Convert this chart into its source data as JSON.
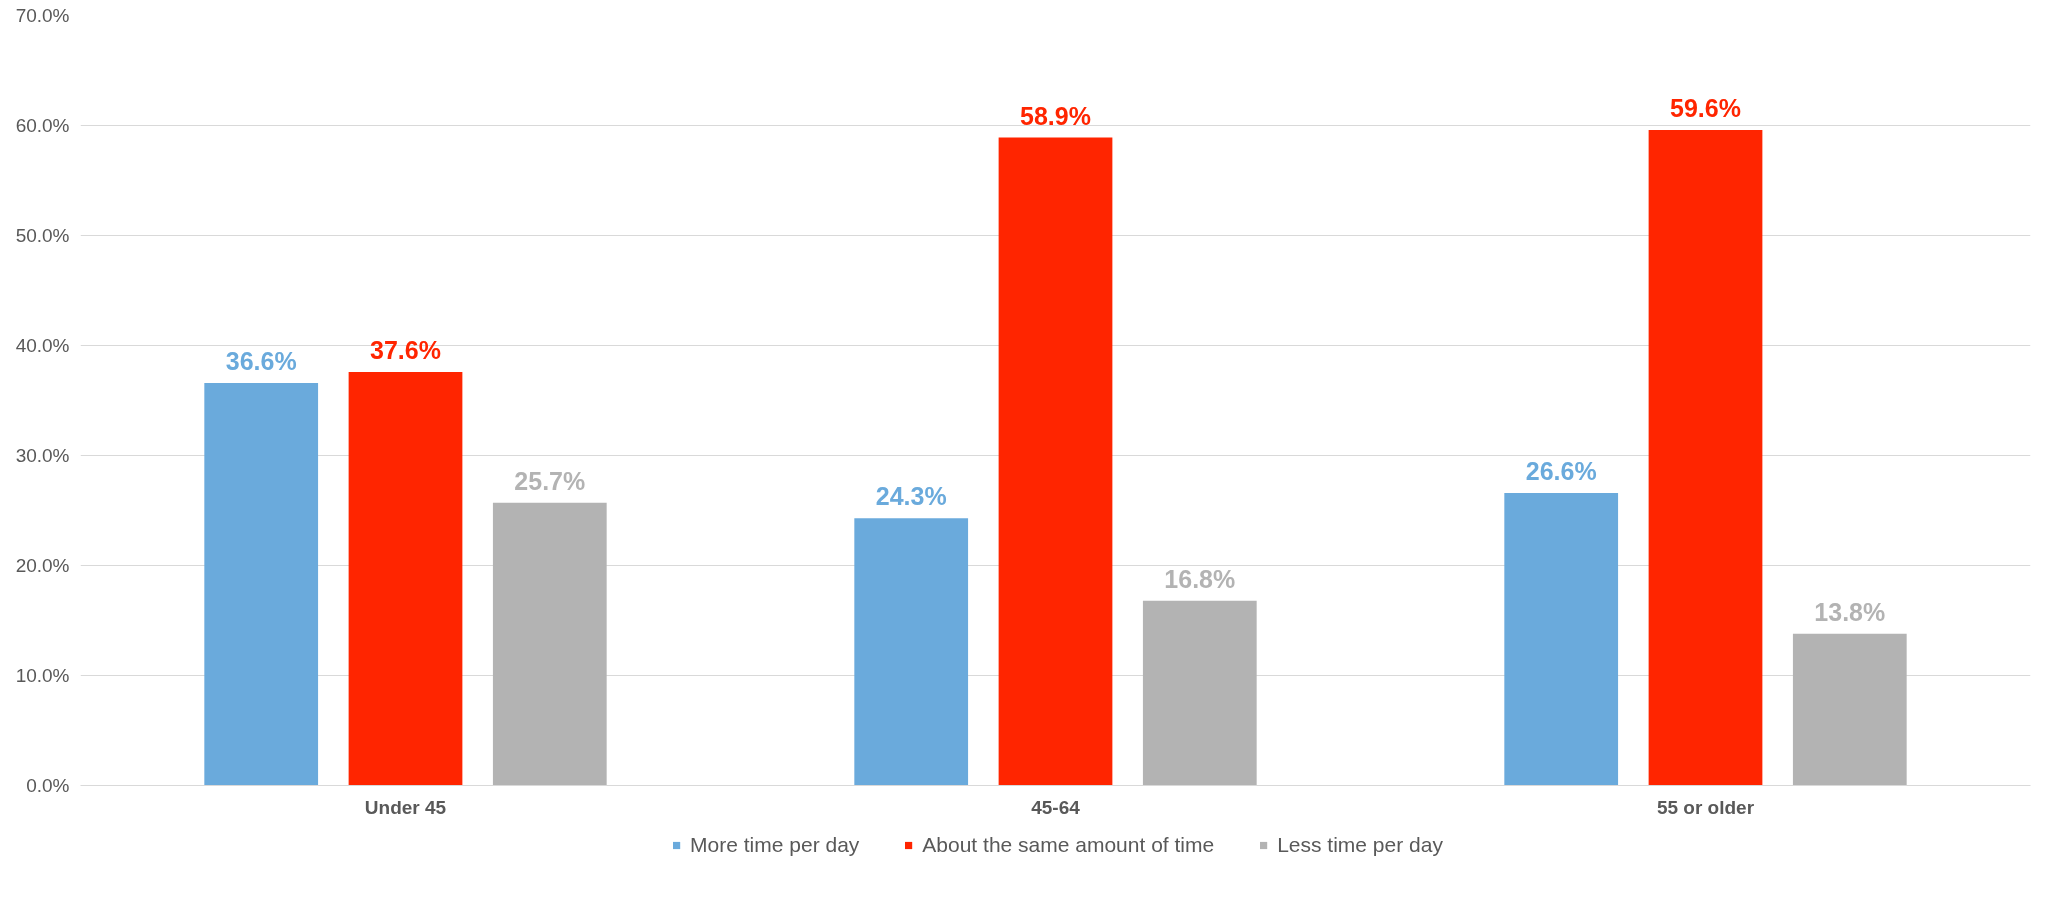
{
  "chart_data": {
    "type": "bar",
    "categories": [
      "Under 45",
      "45-64",
      "55 or older"
    ],
    "series": [
      {
        "name": "More time per day",
        "color": "#6aaadc",
        "values": [
          36.6,
          24.3,
          26.6
        ],
        "value_labels": [
          "36.6%",
          "24.3%",
          "26.6%"
        ]
      },
      {
        "name": "About the same amount of time",
        "color": "#ff2500",
        "values": [
          37.6,
          58.9,
          59.6
        ],
        "value_labels": [
          "37.6%",
          "58.9%",
          "59.6%"
        ]
      },
      {
        "name": "Less time per day",
        "color": "#b3b3b3",
        "values": [
          25.7,
          16.8,
          13.8
        ],
        "value_labels": [
          "25.7%",
          "16.8%",
          "13.8%"
        ]
      }
    ],
    "ylim": [
      0,
      70
    ],
    "yticks": [
      {
        "value": 0,
        "label": "0.0%"
      },
      {
        "value": 10,
        "label": "10.0%"
      },
      {
        "value": 20,
        "label": "20.0%"
      },
      {
        "value": 30,
        "label": "30.0%"
      },
      {
        "value": 40,
        "label": "40.0%"
      },
      {
        "value": 50,
        "label": "50.0%"
      },
      {
        "value": 60,
        "label": "60.0%"
      },
      {
        "value": 70,
        "label": "70.0%"
      }
    ],
    "grid": "y",
    "legend": "bottom"
  }
}
